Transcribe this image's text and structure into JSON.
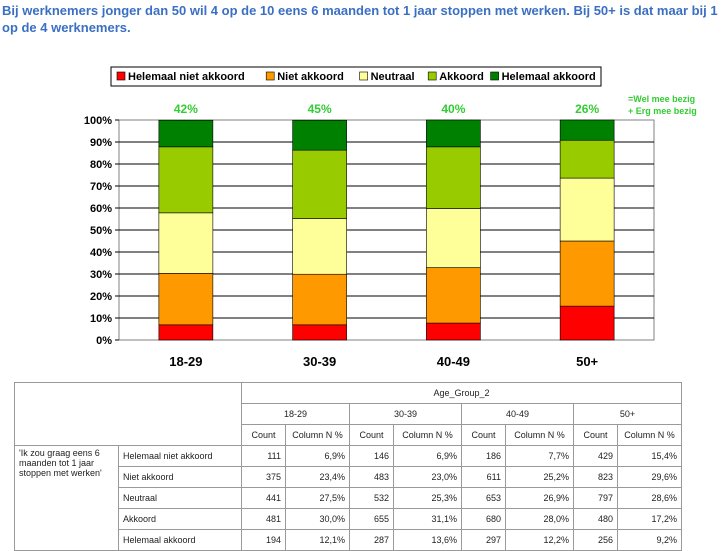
{
  "headline": "Bij werknemers jonger dan 50 wil 4 op de 10 eens 6 maanden tot 1 jaar stoppen met werken. Bij 50+ is dat maar bij 1 op de 4 werknemers.",
  "side_note": [
    "=Wel mee bezig",
    "+ Erg mee bezig"
  ],
  "colors": {
    "red": "#ff0000",
    "orange": "#ff9900",
    "yellow": "#ffff99",
    "lightgreen": "#99cc00",
    "darkgreen": "#008000",
    "green_text": "#33cc33",
    "blue_text": "#3a6fc4"
  },
  "chart_data": {
    "type": "bar",
    "stacked": true,
    "categories": [
      "18-29",
      "30-39",
      "40-49",
      "50+"
    ],
    "top_labels": [
      "42%",
      "45%",
      "40%",
      "26%"
    ],
    "series": [
      {
        "name": "Helemaal niet akkoord",
        "color": "#ff0000",
        "values": [
          6.9,
          6.9,
          7.7,
          15.4
        ]
      },
      {
        "name": "Niet akkoord",
        "color": "#ff9900",
        "values": [
          23.4,
          23.0,
          25.2,
          29.6
        ]
      },
      {
        "name": "Neutraal",
        "color": "#ffff99",
        "values": [
          27.5,
          25.3,
          26.9,
          28.6
        ]
      },
      {
        "name": "Akkoord",
        "color": "#99cc00",
        "values": [
          30.0,
          31.1,
          28.0,
          17.2
        ]
      },
      {
        "name": "Helemaal akkoord",
        "color": "#008000",
        "values": [
          12.1,
          13.6,
          12.2,
          9.2
        ]
      }
    ],
    "ylim": [
      0,
      100
    ],
    "yticks": [
      "0%",
      "10%",
      "20%",
      "30%",
      "40%",
      "50%",
      "60%",
      "70%",
      "80%",
      "90%",
      "100%"
    ],
    "grid": true,
    "legend": "top"
  },
  "table": {
    "group_header": "Age_Group_2",
    "groups": [
      "18-29",
      "30-39",
      "40-49",
      "50+"
    ],
    "col_headers": [
      "Count",
      "Column N %"
    ],
    "question": "'Ik zou graag eens 6 maanden tot 1 jaar stoppen met werken'",
    "rows": [
      {
        "label": "Helemaal niet akkoord",
        "cells": [
          "111",
          "6,9%",
          "146",
          "6,9%",
          "186",
          "7,7%",
          "429",
          "15,4%"
        ]
      },
      {
        "label": "Niet akkoord",
        "cells": [
          "375",
          "23,4%",
          "483",
          "23,0%",
          "611",
          "25,2%",
          "823",
          "29,6%"
        ]
      },
      {
        "label": "Neutraal",
        "cells": [
          "441",
          "27,5%",
          "532",
          "25,3%",
          "653",
          "26,9%",
          "797",
          "28,6%"
        ]
      },
      {
        "label": "Akkoord",
        "cells": [
          "481",
          "30,0%",
          "655",
          "31,1%",
          "680",
          "28,0%",
          "480",
          "17,2%"
        ]
      },
      {
        "label": "Helemaal akkoord",
        "cells": [
          "194",
          "12,1%",
          "287",
          "13,6%",
          "297",
          "12,2%",
          "256",
          "9,2%"
        ]
      }
    ]
  }
}
